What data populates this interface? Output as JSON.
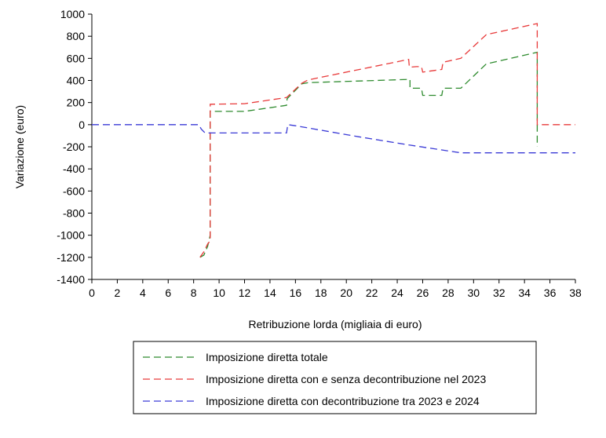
{
  "chart_data": {
    "type": "line",
    "title": "",
    "xlabel": "Retribuzione lorda (migliaia di euro)",
    "ylabel": "Variazione (euro)",
    "xlim": [
      0,
      38
    ],
    "ylim": [
      -1400,
      1000
    ],
    "xticks": [
      0,
      2,
      4,
      6,
      8,
      10,
      12,
      14,
      16,
      18,
      20,
      22,
      24,
      26,
      28,
      30,
      32,
      34,
      36,
      38
    ],
    "yticks": [
      -1400,
      -1200,
      -1000,
      -800,
      -600,
      -400,
      -200,
      0,
      200,
      400,
      600,
      800,
      1000
    ],
    "grid": false,
    "legend_position": "bottom",
    "series": [
      {
        "name": "Imposizione diretta totale",
        "color": "#2e8b2e",
        "line_style": "dashed",
        "points": [
          [
            8.5,
            -1200
          ],
          [
            8.8,
            -1180
          ],
          [
            9.1,
            -1100
          ],
          [
            9.3,
            -1000
          ],
          [
            9.3,
            120
          ],
          [
            12,
            120
          ],
          [
            15.3,
            175
          ],
          [
            15.35,
            235
          ],
          [
            16.5,
            370
          ],
          [
            17,
            380
          ],
          [
            25,
            410
          ],
          [
            25,
            330
          ],
          [
            25.5,
            330
          ],
          [
            25.9,
            330
          ],
          [
            26,
            265
          ],
          [
            27.5,
            265
          ],
          [
            27.6,
            330
          ],
          [
            29,
            330
          ],
          [
            31,
            550
          ],
          [
            35,
            655
          ],
          [
            35,
            -200
          ]
        ]
      },
      {
        "name": "Imposizione diretta con e senza decontribuzione nel 2023",
        "color": "#e83a3a",
        "line_style": "dashed",
        "points": [
          [
            8.5,
            -1200
          ],
          [
            8.8,
            -1150
          ],
          [
            9.1,
            -1080
          ],
          [
            9.3,
            -1050
          ],
          [
            9.3,
            185
          ],
          [
            12,
            190
          ],
          [
            15.3,
            245
          ],
          [
            16.5,
            375
          ],
          [
            17,
            405
          ],
          [
            24.9,
            590
          ],
          [
            24.95,
            520
          ],
          [
            25.5,
            525
          ],
          [
            25.9,
            525
          ],
          [
            26,
            475
          ],
          [
            27.5,
            500
          ],
          [
            27.6,
            565
          ],
          [
            29,
            600
          ],
          [
            31,
            815
          ],
          [
            35,
            915
          ],
          [
            35,
            0
          ],
          [
            38,
            0
          ]
        ]
      },
      {
        "name": "Imposizione diretta con decontribuzione tra 2023 e 2024",
        "color": "#3a3ad6",
        "line_style": "dashed",
        "points": [
          [
            0,
            0
          ],
          [
            8.4,
            0
          ],
          [
            8.6,
            -40
          ],
          [
            8.9,
            -75
          ],
          [
            15.3,
            -75
          ],
          [
            15.4,
            0
          ],
          [
            16,
            -10
          ],
          [
            21,
            -110
          ],
          [
            25,
            -185
          ],
          [
            29,
            -255
          ],
          [
            38,
            -255
          ]
        ]
      }
    ]
  }
}
